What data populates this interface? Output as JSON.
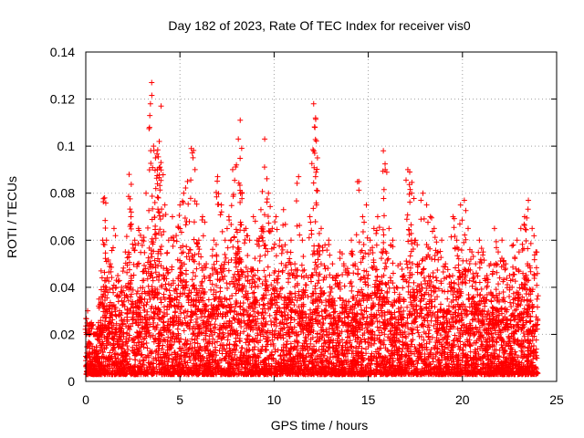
{
  "chart_data": {
    "type": "scatter",
    "title": "Day 182 of 2023, Rate Of TEC Index for receiver vis0",
    "xlabel": "GPS time / hours",
    "ylabel": "ROTI / TECUs",
    "xlim": [
      0,
      25
    ],
    "ylim": [
      0,
      0.14
    ],
    "xticks": [
      "0",
      "5",
      "10",
      "15",
      "20",
      "25"
    ],
    "yticks": [
      "0",
      "0.02",
      "0.04",
      "0.06",
      "0.08",
      "0.1",
      "0.12",
      "0.14"
    ],
    "xtick_values": [
      0,
      5,
      10,
      15,
      20,
      25
    ],
    "ytick_values": [
      0,
      0.02,
      0.04,
      0.06,
      0.08,
      0.1,
      0.12,
      0.14
    ],
    "grid": true,
    "marker": "+",
    "color": "#ff0000",
    "series": [
      {
        "x": [
          0.1,
          0.3,
          0.5,
          0.7,
          0.9,
          1.0,
          1.1,
          1.3,
          1.5,
          1.7,
          1.9,
          2.1,
          2.3,
          2.4,
          2.6,
          2.8,
          3.0,
          3.2,
          3.4,
          3.5,
          3.6,
          3.7,
          3.8,
          3.9,
          4.0,
          4.2,
          4.4,
          4.6,
          4.8,
          5.0,
          5.2,
          5.4,
          5.6,
          5.8,
          6.0,
          6.2,
          6.4,
          6.6,
          6.8,
          7.0,
          7.2,
          7.4,
          7.6,
          7.8,
          8.0,
          8.1,
          8.2,
          8.3,
          8.5,
          8.7,
          8.9,
          9.1,
          9.3,
          9.5,
          9.7,
          9.9,
          10.1,
          10.3,
          10.5,
          10.7,
          10.9,
          11.1,
          11.3,
          11.5,
          11.7,
          11.9,
          12.1,
          12.2,
          12.3,
          12.5,
          12.7,
          12.9,
          13.1,
          13.3,
          13.5,
          13.7,
          13.9,
          14.1,
          14.3,
          14.5,
          14.7,
          14.9,
          15.1,
          15.3,
          15.5,
          15.7,
          15.8,
          15.9,
          16.1,
          16.3,
          16.5,
          16.7,
          16.9,
          17.1,
          17.2,
          17.3,
          17.5,
          17.7,
          17.9,
          18.1,
          18.3,
          18.5,
          18.7,
          18.9,
          19.1,
          19.3,
          19.5,
          19.7,
          19.9,
          20.1,
          20.3,
          20.5,
          20.7,
          20.9,
          21.1,
          21.3,
          21.5,
          21.7,
          21.9,
          22.1,
          22.3,
          22.5,
          22.7,
          22.9,
          23.1,
          23.3,
          23.5,
          23.7,
          23.9
        ],
        "y": [
          0.03,
          0.025,
          0.02,
          0.035,
          0.06,
          0.078,
          0.06,
          0.05,
          0.065,
          0.045,
          0.04,
          0.055,
          0.088,
          0.07,
          0.06,
          0.065,
          0.06,
          0.08,
          0.113,
          0.127,
          0.1,
          0.095,
          0.09,
          0.102,
          0.117,
          0.075,
          0.06,
          0.07,
          0.062,
          0.075,
          0.08,
          0.085,
          0.099,
          0.09,
          0.06,
          0.07,
          0.05,
          0.045,
          0.06,
          0.087,
          0.075,
          0.06,
          0.07,
          0.09,
          0.092,
          0.103,
          0.111,
          0.08,
          0.065,
          0.06,
          0.07,
          0.06,
          0.073,
          0.103,
          0.08,
          0.065,
          0.07,
          0.06,
          0.073,
          0.055,
          0.06,
          0.05,
          0.087,
          0.06,
          0.045,
          0.07,
          0.118,
          0.112,
          0.095,
          0.065,
          0.058,
          0.06,
          0.05,
          0.045,
          0.055,
          0.05,
          0.048,
          0.06,
          0.05,
          0.085,
          0.07,
          0.075,
          0.06,
          0.065,
          0.07,
          0.055,
          0.098,
          0.09,
          0.065,
          0.06,
          0.04,
          0.05,
          0.045,
          0.09,
          0.089,
          0.08,
          0.06,
          0.05,
          0.08,
          0.075,
          0.07,
          0.065,
          0.055,
          0.06,
          0.05,
          0.045,
          0.07,
          0.06,
          0.075,
          0.077,
          0.065,
          0.055,
          0.05,
          0.06,
          0.055,
          0.045,
          0.05,
          0.065,
          0.055,
          0.06,
          0.05,
          0.045,
          0.058,
          0.06,
          0.065,
          0.07,
          0.077,
          0.065,
          0.055
        ]
      }
    ],
    "dense_band": {
      "description_hidden": true,
      "x_range": [
        0,
        24
      ],
      "y_floor": 0.003
    }
  }
}
